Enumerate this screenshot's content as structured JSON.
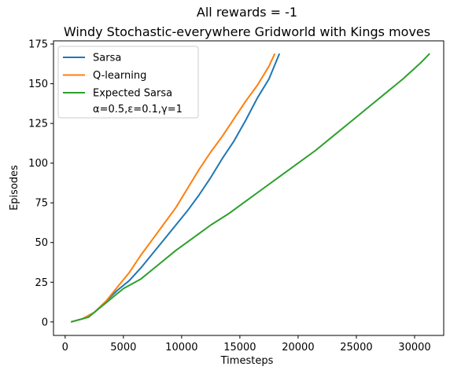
{
  "chart_data": {
    "type": "line",
    "title": "All rewards = -1",
    "subtitle": "Windy Stochastic-everywhere Gridworld with Kings moves",
    "xlabel": "Timesteps",
    "ylabel": "Episodes",
    "xlim": [
      -1000,
      32500
    ],
    "ylim": [
      -8.5,
      177
    ],
    "x_ticks": [
      0,
      5000,
      10000,
      15000,
      20000,
      25000,
      30000
    ],
    "y_ticks": [
      0,
      25,
      50,
      75,
      100,
      125,
      150,
      175
    ],
    "grid": false,
    "legend_placement": "top-left",
    "legend_note": "α=0.5,ε=0.1,γ=1",
    "series": [
      {
        "name": "Sarsa",
        "color": "#1f77b4",
        "x": [
          500,
          1500,
          2500,
          3500,
          4500,
          5500,
          6500,
          7500,
          8500,
          9500,
          10500,
          11500,
          12500,
          13500,
          14500,
          15500,
          16500,
          17500,
          18400
        ],
        "y": [
          0,
          2,
          6,
          13,
          20,
          26,
          34,
          43,
          52,
          61,
          70,
          80,
          91,
          103,
          114,
          127,
          141,
          153,
          169
        ]
      },
      {
        "name": "Q-learning",
        "color": "#ff7f0e",
        "x": [
          500,
          1500,
          2500,
          3500,
          4500,
          5500,
          6500,
          7500,
          8500,
          9500,
          10500,
          11500,
          12500,
          13500,
          14500,
          15500,
          16500,
          17500,
          18000
        ],
        "y": [
          0,
          2,
          6,
          13,
          22,
          31,
          42,
          52,
          62,
          72,
          84,
          96,
          107,
          117,
          128,
          139,
          149,
          161,
          169
        ]
      },
      {
        "name": "Expected Sarsa",
        "color": "#2ca02c",
        "x": [
          500,
          2000,
          3500,
          5000,
          6500,
          8000,
          9500,
          11000,
          12500,
          14000,
          15500,
          17000,
          18500,
          20000,
          21500,
          23000,
          24500,
          26000,
          27500,
          29000,
          30500,
          31300
        ],
        "y": [
          0,
          3,
          12,
          21,
          27,
          36,
          45,
          53,
          61,
          68,
          76,
          84,
          92,
          100,
          108,
          117,
          126,
          135,
          144,
          153,
          163,
          169
        ]
      }
    ]
  }
}
